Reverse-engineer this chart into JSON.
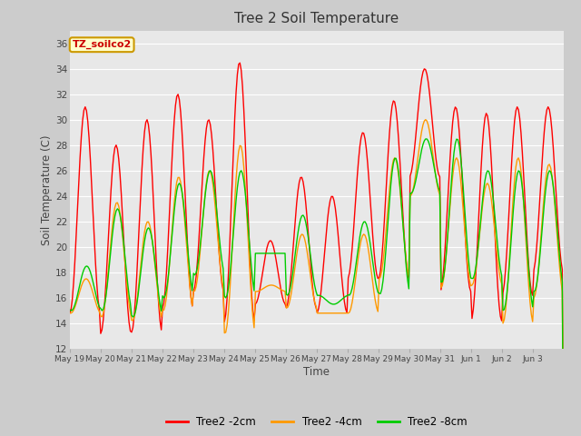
{
  "title": "Tree 2 Soil Temperature",
  "xlabel": "Time",
  "ylabel": "Soil Temperature (C)",
  "ylim": [
    12,
    37
  ],
  "yticks": [
    12,
    14,
    16,
    18,
    20,
    22,
    24,
    26,
    28,
    30,
    32,
    34,
    36
  ],
  "annotation": "TZ_soilco2",
  "annotation_color": "#cc0000",
  "annotation_bg": "#ffffcc",
  "annotation_border": "#cc9900",
  "fig_bg_color": "#cccccc",
  "plot_bg": "#e8e8e8",
  "grid_color": "#ffffff",
  "line_colors": {
    "2cm": "#ff0000",
    "4cm": "#ff9900",
    "8cm": "#00cc00"
  },
  "line_width": 1.0,
  "legend_labels": [
    "Tree2 -2cm",
    "Tree2 -4cm",
    "Tree2 -8cm"
  ],
  "x_tick_labels": [
    "May 19",
    "May 20",
    "May 21",
    "May 22",
    "May 23",
    "May 24",
    "May 25",
    "May 26",
    "May 27",
    "May 28",
    "May 29",
    "May 30",
    "May 31",
    "Jun 1",
    "Jun 2",
    "Jun 3"
  ],
  "peaks_2cm": [
    31,
    28,
    30,
    32,
    30,
    34.5,
    20.5,
    25.5,
    24,
    29,
    31.5,
    34,
    31,
    30.5,
    31,
    31
  ],
  "troughs_2cm": [
    14.8,
    13.2,
    13.3,
    15.2,
    16.5,
    14.1,
    15.5,
    15.2,
    14.8,
    17.5,
    17.5,
    25.5,
    16.5,
    14.2,
    16.2,
    18.0
  ],
  "peaks_4cm": [
    17.5,
    23.5,
    22,
    25.5,
    26,
    28,
    17,
    21,
    14.8,
    21,
    27,
    30,
    27,
    25,
    27,
    26.5
  ],
  "troughs_4cm": [
    14.8,
    14.5,
    14.2,
    15.0,
    16.5,
    13.2,
    16.5,
    15.2,
    14.8,
    14.8,
    17.5,
    24,
    16.8,
    17,
    14.0,
    16
  ],
  "peaks_8cm": [
    18.5,
    23,
    21.5,
    25,
    26,
    26,
    19.5,
    22.5,
    15.5,
    22,
    27,
    28.5,
    28.5,
    26,
    26,
    26
  ],
  "troughs_8cm": [
    15,
    15,
    14.5,
    16,
    17.8,
    16,
    19.5,
    16.2,
    16.2,
    16.2,
    16.3,
    24.2,
    17.2,
    17.5,
    15,
    16.5
  ]
}
